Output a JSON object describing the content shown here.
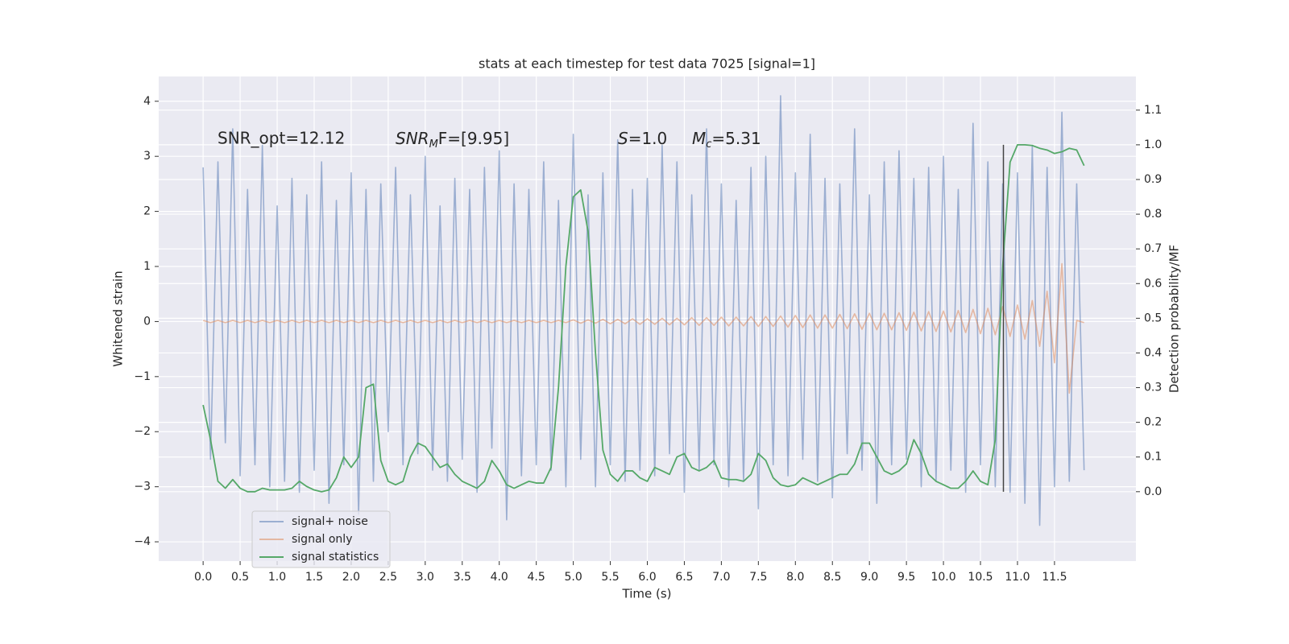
{
  "chart_data": {
    "type": "line",
    "title": "stats at each timestep for test data 7025 [signal=1]",
    "xlabel": "Time (s)",
    "ylabel": "Whitened strain",
    "y2label": "Detection probability/MF",
    "annotations": [
      [
        "SNR_opt=12.12"
      ],
      [
        "SNR",
        "M",
        "F=[9.95]"
      ],
      [
        "S",
        "=1.0"
      ],
      [
        "M",
        "c",
        "=5.31"
      ]
    ],
    "grid": true,
    "legend": "lower left",
    "xlim": [
      -0.6,
      12.6
    ],
    "ylim": [
      -4.35,
      4.45
    ],
    "y2lim": [
      -0.2,
      1.197
    ],
    "xticks": [
      {
        "value": 0,
        "label": "0.0"
      },
      0.5,
      {
        "value": 1,
        "label": "1.0"
      },
      1.5,
      {
        "value": 2,
        "label": "2.0"
      },
      2.5,
      {
        "value": 3,
        "label": "3.0"
      },
      3.5,
      {
        "value": 4,
        "label": "4.0"
      },
      4.5,
      {
        "value": 5,
        "label": "5.0"
      },
      5.5,
      {
        "value": 6,
        "label": "6.0"
      },
      6.5,
      {
        "value": 7,
        "label": "7.0"
      },
      7.5,
      {
        "value": 8,
        "label": "8.0"
      },
      8.5,
      {
        "value": 9,
        "label": "9.0"
      },
      9.5,
      {
        "value": 10,
        "label": "10.0"
      },
      10.5,
      {
        "value": 11,
        "label": "11.0"
      },
      11.5
    ],
    "yticks": [
      {
        "value": -4,
        "label": "−4"
      },
      {
        "value": -3,
        "label": "−3"
      },
      {
        "value": -2,
        "label": "−2"
      },
      {
        "value": -1,
        "label": "−1"
      },
      0,
      1,
      2,
      3,
      4
    ],
    "y2ticks": [
      {
        "value": 0,
        "label": "0.0"
      },
      0.1,
      0.2,
      0.3,
      0.4,
      0.5,
      0.6,
      0.7,
      0.8,
      0.9,
      {
        "value": 1,
        "label": "1.0"
      },
      1.1
    ],
    "x": [
      0,
      0.1,
      0.2,
      0.3,
      0.4,
      0.5,
      0.6,
      0.7,
      0.8,
      0.9,
      1,
      1.1,
      1.2,
      1.3,
      1.4,
      1.5,
      1.6,
      1.7,
      1.8,
      1.9,
      2,
      2.1,
      2.2,
      2.3,
      2.4,
      2.5,
      2.6,
      2.7,
      2.8,
      2.9,
      3,
      3.1,
      3.2,
      3.3,
      3.4,
      3.5,
      3.6,
      3.7,
      3.8,
      3.9,
      4,
      4.1,
      4.2,
      4.3,
      4.4,
      4.5,
      4.6,
      4.7,
      4.8,
      4.9,
      5,
      5.1,
      5.2,
      5.3,
      5.4,
      5.5,
      5.6,
      5.7,
      5.8,
      5.9,
      6,
      6.1,
      6.2,
      6.3,
      6.4,
      6.5,
      6.6,
      6.7,
      6.8,
      6.9,
      7,
      7.1,
      7.2,
      7.3,
      7.4,
      7.5,
      7.6,
      7.7,
      7.8,
      7.9,
      8,
      8.1,
      8.2,
      8.3,
      8.4,
      8.5,
      8.6,
      8.7,
      8.8,
      8.9,
      9,
      9.1,
      9.2,
      9.3,
      9.4,
      9.5,
      9.6,
      9.7,
      9.8,
      9.9,
      10,
      10.1,
      10.2,
      10.3,
      10.4,
      10.5,
      10.6,
      10.7,
      10.8,
      10.9,
      11,
      11.1,
      11.2,
      11.3,
      11.4,
      11.5,
      11.6,
      11.7,
      11.8,
      11.9
    ],
    "series": [
      {
        "name": "signal+ noise",
        "color": "#4c72b0",
        "axis": "y",
        "values": [
          2.8,
          -2.5,
          2.9,
          -2.2,
          3.5,
          -2.8,
          2.4,
          -2.6,
          3.2,
          -3.0,
          2.1,
          -2.9,
          2.6,
          -3.1,
          2.3,
          -2.7,
          2.9,
          -3.3,
          2.2,
          -2.6,
          2.7,
          -3.5,
          2.4,
          -2.9,
          2.5,
          -2.0,
          2.8,
          -2.6,
          2.3,
          -2.4,
          3.0,
          -2.7,
          2.1,
          -2.9,
          2.6,
          -2.5,
          2.4,
          -3.1,
          2.8,
          -2.3,
          3.1,
          -3.6,
          2.5,
          -2.8,
          2.4,
          -2.6,
          2.9,
          -2.7,
          2.2,
          -3.0,
          3.4,
          -2.5,
          2.3,
          -3.0,
          2.7,
          -2.6,
          3.3,
          -2.9,
          2.4,
          -2.7,
          2.6,
          -2.8,
          3.2,
          -2.4,
          2.9,
          -3.1,
          2.3,
          -2.7,
          3.5,
          -2.6,
          2.5,
          -3.0,
          2.2,
          -2.9,
          2.8,
          -3.4,
          3.0,
          -2.6,
          4.1,
          -2.8,
          2.7,
          -2.5,
          3.4,
          -2.9,
          2.6,
          -3.2,
          2.5,
          -2.4,
          3.5,
          -2.7,
          2.3,
          -3.3,
          2.9,
          -2.6,
          3.1,
          -2.5,
          2.6,
          -3.0,
          2.8,
          -2.9,
          3.0,
          -2.7,
          2.4,
          -3.1,
          3.6,
          -2.6,
          2.9,
          -3.0,
          2.5,
          -3.1,
          2.7,
          -3.3,
          3.2,
          -3.7,
          2.8,
          -3.0,
          3.8,
          -2.9,
          2.5,
          -2.7
        ]
      },
      {
        "name": "signal only",
        "color": "#dd8452",
        "axis": "y",
        "values": [
          0.02,
          -0.02,
          0.02,
          -0.02,
          0.02,
          -0.02,
          0.02,
          -0.02,
          0.02,
          -0.02,
          0.02,
          -0.02,
          0.02,
          -0.02,
          0.02,
          -0.02,
          0.02,
          -0.02,
          0.02,
          -0.02,
          0.02,
          -0.02,
          0.02,
          -0.02,
          0.02,
          -0.02,
          0.02,
          -0.02,
          0.02,
          -0.02,
          0.02,
          -0.02,
          0.02,
          -0.02,
          0.02,
          -0.02,
          0.02,
          -0.02,
          0.02,
          -0.02,
          0.02,
          -0.02,
          0.02,
          -0.02,
          0.02,
          -0.02,
          0.02,
          -0.02,
          0.02,
          -0.02,
          0.03,
          -0.03,
          0.03,
          -0.03,
          0.04,
          -0.04,
          0.04,
          -0.04,
          0.05,
          -0.05,
          0.05,
          -0.05,
          0.06,
          -0.06,
          0.06,
          -0.06,
          0.07,
          -0.07,
          0.07,
          -0.07,
          0.08,
          -0.08,
          0.08,
          -0.08,
          0.09,
          -0.09,
          0.09,
          -0.09,
          0.1,
          -0.1,
          0.11,
          -0.11,
          0.12,
          -0.12,
          0.12,
          -0.12,
          0.13,
          -0.13,
          0.14,
          -0.14,
          0.15,
          -0.15,
          0.15,
          -0.15,
          0.16,
          -0.16,
          0.17,
          -0.17,
          0.18,
          -0.18,
          0.19,
          -0.19,
          0.2,
          -0.2,
          0.22,
          -0.22,
          0.24,
          -0.24,
          0.27,
          -0.27,
          0.3,
          -0.32,
          0.38,
          -0.45,
          0.55,
          -0.75,
          1.05,
          -1.3,
          0.02,
          -0.02
        ]
      },
      {
        "name": "signal statistics",
        "color": "#55a868",
        "axis": "y2",
        "values": [
          0.25,
          0.15,
          0.03,
          0.01,
          0.035,
          0.01,
          0.0,
          0.0,
          0.01,
          0.005,
          0.005,
          0.005,
          0.01,
          0.03,
          0.015,
          0.005,
          0.0,
          0.005,
          0.04,
          0.1,
          0.07,
          0.1,
          0.3,
          0.31,
          0.09,
          0.03,
          0.02,
          0.03,
          0.1,
          0.14,
          0.13,
          0.1,
          0.07,
          0.08,
          0.05,
          0.03,
          0.02,
          0.01,
          0.03,
          0.09,
          0.06,
          0.02,
          0.01,
          0.02,
          0.03,
          0.025,
          0.025,
          0.07,
          0.3,
          0.65,
          0.85,
          0.87,
          0.75,
          0.4,
          0.12,
          0.05,
          0.03,
          0.06,
          0.06,
          0.04,
          0.03,
          0.07,
          0.06,
          0.05,
          0.1,
          0.11,
          0.07,
          0.06,
          0.07,
          0.09,
          0.04,
          0.035,
          0.035,
          0.03,
          0.05,
          0.11,
          0.09,
          0.04,
          0.02,
          0.015,
          0.02,
          0.04,
          0.03,
          0.02,
          0.03,
          0.04,
          0.05,
          0.05,
          0.08,
          0.14,
          0.14,
          0.1,
          0.06,
          0.05,
          0.06,
          0.08,
          0.15,
          0.11,
          0.05,
          0.03,
          0.02,
          0.01,
          0.01,
          0.03,
          0.06,
          0.03,
          0.02,
          0.15,
          0.65,
          0.95,
          1.0,
          1.0,
          0.998,
          0.99,
          0.985,
          0.975,
          0.98,
          0.99,
          0.985,
          0.94
        ]
      }
    ],
    "vline": {
      "x": 10.81,
      "ymin": 0,
      "ymax": 1,
      "color": "#444444"
    }
  }
}
